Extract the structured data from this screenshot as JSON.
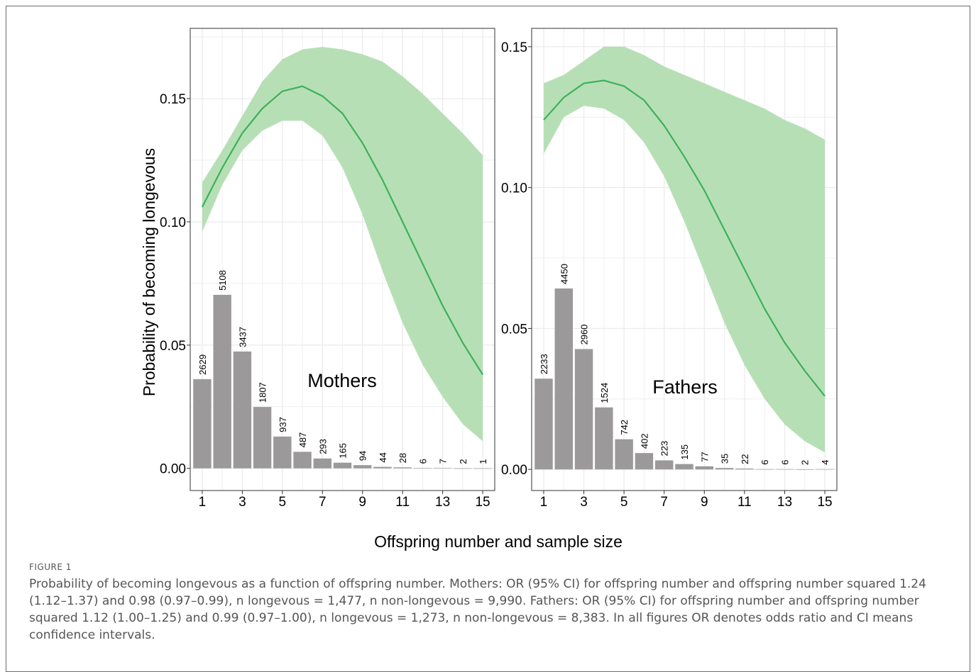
{
  "figure": {
    "label": "FIGURE 1",
    "caption": "Probability of becoming longevous as a function of offspring number. Mothers: OR (95% CI) for offspring number and offspring number squared 1.24 (1.12–1.37) and 0.98 (0.97–0.99), n longevous = 1,477, n non-longevous = 9,990. Fathers: OR (95% CI) for offspring number and offspring number squared 1.12 (1.00–1.25) and 0.99 (0.97–1.00), n longevous = 1,273, n non-longevous = 8,383. In all figures OR denotes odds ratio and CI means confidence intervals."
  },
  "colors": {
    "ribbon": "#b7dfb6",
    "line": "#3bb15a",
    "bar": "#9b9999",
    "grid": "#ebebeb",
    "panel_border": "#555555"
  },
  "chart_data": [
    {
      "type": "line",
      "panel_label": "Mothers",
      "ylabel": "Probability of becoming longevous",
      "xlabel": "Offspring number and sample size",
      "xlim": [
        0.4,
        15.6
      ],
      "ylim": [
        -0.009,
        0.1785
      ],
      "x_ticks": [
        1,
        3,
        5,
        7,
        9,
        11,
        13,
        15
      ],
      "y_ticks": [
        0.0,
        0.05,
        0.1,
        0.15
      ],
      "y_tick_labels": [
        "0.00",
        "0.05",
        "0.10",
        "0.15"
      ],
      "x": [
        1,
        2,
        3,
        4,
        5,
        6,
        7,
        8,
        9,
        10,
        11,
        12,
        13,
        14,
        15
      ],
      "probability": [
        0.106,
        0.122,
        0.136,
        0.146,
        0.153,
        0.155,
        0.151,
        0.144,
        0.132,
        0.117,
        0.1,
        0.083,
        0.066,
        0.051,
        0.038
      ],
      "ci_lower": [
        0.096,
        0.115,
        0.129,
        0.137,
        0.141,
        0.141,
        0.135,
        0.122,
        0.103,
        0.08,
        0.059,
        0.042,
        0.029,
        0.018,
        0.011
      ],
      "ci_upper": [
        0.116,
        0.129,
        0.143,
        0.157,
        0.166,
        0.17,
        0.171,
        0.17,
        0.168,
        0.165,
        0.159,
        0.152,
        0.144,
        0.136,
        0.127
      ],
      "bars": {
        "x": [
          1,
          2,
          3,
          4,
          5,
          6,
          7,
          8,
          9,
          10,
          11,
          12,
          13,
          14,
          15
        ],
        "bar_height": [
          0.0362,
          0.0704,
          0.0474,
          0.0249,
          0.0129,
          0.0067,
          0.004,
          0.0023,
          0.0013,
          0.0006,
          0.0004,
          0.0001,
          0.0001,
          0.0,
          0.0
        ],
        "labels": [
          "2629",
          "5108",
          "3437",
          "1807",
          "937",
          "487",
          "293",
          "165",
          "94",
          "44",
          "28",
          "6",
          "7",
          "2",
          "1"
        ]
      }
    },
    {
      "type": "line",
      "panel_label": "Fathers",
      "xlim": [
        0.4,
        15.6
      ],
      "ylim": [
        -0.0075,
        0.1565
      ],
      "x_ticks": [
        1,
        3,
        5,
        7,
        9,
        11,
        13,
        15
      ],
      "y_ticks": [
        0.0,
        0.05,
        0.1,
        0.15
      ],
      "y_tick_labels": [
        "0.00",
        "0.05",
        "0.10",
        "0.15"
      ],
      "x": [
        1,
        2,
        3,
        4,
        5,
        6,
        7,
        8,
        9,
        10,
        11,
        12,
        13,
        14,
        15
      ],
      "probability": [
        0.124,
        0.132,
        0.137,
        0.138,
        0.136,
        0.131,
        0.122,
        0.111,
        0.099,
        0.085,
        0.071,
        0.057,
        0.045,
        0.035,
        0.026
      ],
      "ci_lower": [
        0.112,
        0.125,
        0.129,
        0.128,
        0.124,
        0.116,
        0.104,
        0.088,
        0.07,
        0.052,
        0.037,
        0.025,
        0.016,
        0.01,
        0.006
      ],
      "ci_upper": [
        0.137,
        0.14,
        0.145,
        0.15,
        0.15,
        0.147,
        0.143,
        0.14,
        0.137,
        0.134,
        0.131,
        0.128,
        0.124,
        0.121,
        0.117
      ],
      "bars": {
        "x": [
          1,
          2,
          3,
          4,
          5,
          6,
          7,
          8,
          9,
          10,
          11,
          12,
          13,
          14,
          15
        ],
        "bar_height": [
          0.0322,
          0.0642,
          0.0427,
          0.022,
          0.0107,
          0.0058,
          0.0032,
          0.0019,
          0.0011,
          0.0005,
          0.0003,
          0.0001,
          0.0001,
          0.0,
          0.0001
        ],
        "labels": [
          "2233",
          "4450",
          "2960",
          "1524",
          "742",
          "402",
          "223",
          "135",
          "77",
          "35",
          "22",
          "6",
          "6",
          "2",
          "4"
        ]
      }
    }
  ]
}
